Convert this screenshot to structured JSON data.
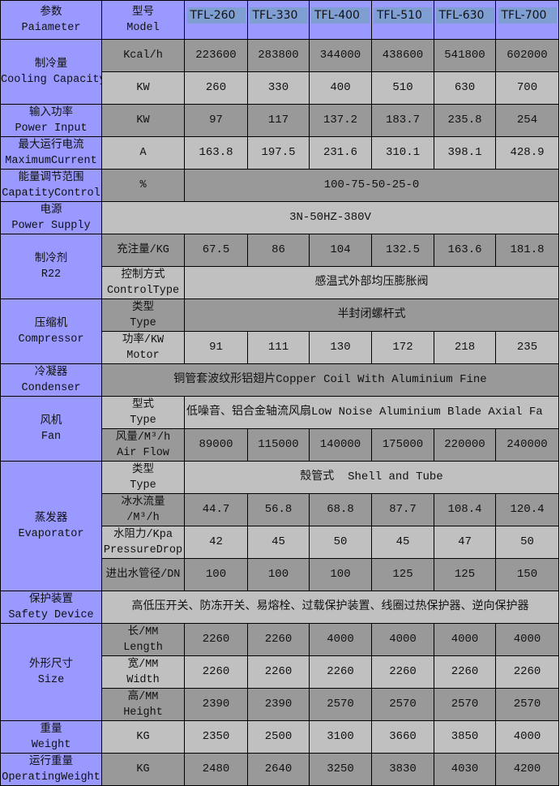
{
  "header": {
    "param_zh": "参数",
    "param_en": "Paiameter",
    "model_zh": "型号",
    "model_en": "Model",
    "models": [
      "TFL-260",
      "TFL-330",
      "TFL-400",
      "TFL-510",
      "TFL-630",
      "TFL-700"
    ]
  },
  "colors": {
    "label_bg": "#9999ff",
    "row_dark": "#999999",
    "row_light": "#c0c0c0",
    "model_highlight": "#7f9fd3"
  },
  "rows": [
    {
      "label_zh": "制冷量",
      "label_en": "Cooling Capacity",
      "label_rowspan": 2,
      "unit_zh": "Kcal/h",
      "unit_en": "",
      "values": [
        "223600",
        "283800",
        "344000",
        "438600",
        "541800",
        "602000"
      ]
    },
    {
      "unit_zh": "KW",
      "unit_en": "",
      "values": [
        "260",
        "330",
        "400",
        "510",
        "630",
        "700"
      ]
    },
    {
      "label_zh": "输入功率",
      "label_en": "Power Input",
      "label_rowspan": 1,
      "unit_zh": "KW",
      "unit_en": "",
      "values": [
        "97",
        "117",
        "137.2",
        "183.7",
        "235.8",
        "254"
      ]
    },
    {
      "label_zh": "最大运行电流",
      "label_en": "MaximumCurrent",
      "label_rowspan": 1,
      "unit_zh": "A",
      "unit_en": "",
      "values": [
        "163.8",
        "197.5",
        "231.6",
        "310.1",
        "398.1",
        "428.9"
      ]
    },
    {
      "label_zh": "能量调节范围",
      "label_en": "CapatityControl",
      "label_rowspan": 1,
      "unit_zh": "%",
      "unit_en": "",
      "span_value": "100-75-50-25-0"
    },
    {
      "label_zh": "电源",
      "label_en": "Power Supply",
      "label_rowspan": 1,
      "full_span_value": "3N-50HZ-380V"
    },
    {
      "label_zh": "制冷剂",
      "label_en": "R22",
      "label_rowspan": 2,
      "unit_zh": "充注量/KG",
      "unit_en": "",
      "values": [
        "67.5",
        "86",
        "104",
        "132.5",
        "163.6",
        "181.8"
      ]
    },
    {
      "unit_zh": "控制方式",
      "unit_en": "ControlType",
      "span_value": "感温式外部均压膨胀阀"
    },
    {
      "label_zh": "压缩机",
      "label_en": "Compressor",
      "label_rowspan": 2,
      "unit_zh": "类型",
      "unit_en": "Type",
      "span_value": "半封闭螺杆式"
    },
    {
      "unit_zh": "功率/KW",
      "unit_en": "Motor",
      "values": [
        "91",
        "111",
        "130",
        "172",
        "218",
        "235"
      ]
    },
    {
      "label_zh": "冷凝器",
      "label_en": "Condenser",
      "label_rowspan": 1,
      "full_span_value": "铜管套波纹形铝翅片Copper Coil With Aluminium Fine"
    },
    {
      "label_zh": "风机",
      "label_en": "Fan",
      "label_rowspan": 2,
      "unit_zh": "型式",
      "unit_en": "Type",
      "span_value": "低噪音、铝合金轴流风扇Low Noise Aluminium Blade Axial Fa"
    },
    {
      "unit_zh": "风量/M³/h",
      "unit_en": "Air Flow",
      "values": [
        "89000",
        "115000",
        "140000",
        "175000",
        "220000",
        "240000"
      ]
    },
    {
      "label_zh": "蒸发器",
      "label_en": "Evaporator",
      "label_rowspan": 4,
      "unit_zh": "类型",
      "unit_en": "Type",
      "span_value": "殼管式  Shell and Tube"
    },
    {
      "unit_zh": "冰水流量",
      "unit_en": "/M³/h",
      "values": [
        "44.7",
        "56.8",
        "68.8",
        "87.7",
        "108.4",
        "120.4"
      ]
    },
    {
      "unit_zh": "水阻力/Kpa",
      "unit_en": "PressureDrop",
      "values": [
        "42",
        "45",
        "50",
        "45",
        "47",
        "50"
      ]
    },
    {
      "unit_zh": "进出水管径/DN",
      "unit_en": "",
      "values": [
        "100",
        "100",
        "100",
        "125",
        "125",
        "150"
      ]
    },
    {
      "label_zh": "保护装置",
      "label_en": "Safety Device",
      "label_rowspan": 1,
      "full_span_value": "高低压开关、防冻开关、易熔栓、过载保护装置、线圈过热保护器、逆向保护器"
    },
    {
      "label_zh": "外形尺寸",
      "label_en": "Size",
      "label_rowspan": 3,
      "unit_zh": "长/MM",
      "unit_en": "Length",
      "values": [
        "2260",
        "2260",
        "4000",
        "4000",
        "4000",
        "4000"
      ]
    },
    {
      "unit_zh": "宽/MM",
      "unit_en": "Width",
      "values": [
        "2260",
        "2260",
        "2260",
        "2260",
        "2260",
        "2260"
      ]
    },
    {
      "unit_zh": "高/MM",
      "unit_en": "Height",
      "values": [
        "2390",
        "2390",
        "2570",
        "2570",
        "2570",
        "2570"
      ]
    },
    {
      "label_zh": "重量",
      "label_en": "Weight",
      "label_rowspan": 1,
      "unit_zh": "KG",
      "unit_en": "",
      "values": [
        "2350",
        "2500",
        "3100",
        "3660",
        "3850",
        "4000"
      ]
    },
    {
      "label_zh": "运行重量",
      "label_en": "OperatingWeight",
      "label_rowspan": 1,
      "unit_zh": "KG",
      "unit_en": "",
      "values": [
        "2480",
        "2640",
        "3250",
        "3830",
        "4030",
        "4200"
      ]
    }
  ]
}
